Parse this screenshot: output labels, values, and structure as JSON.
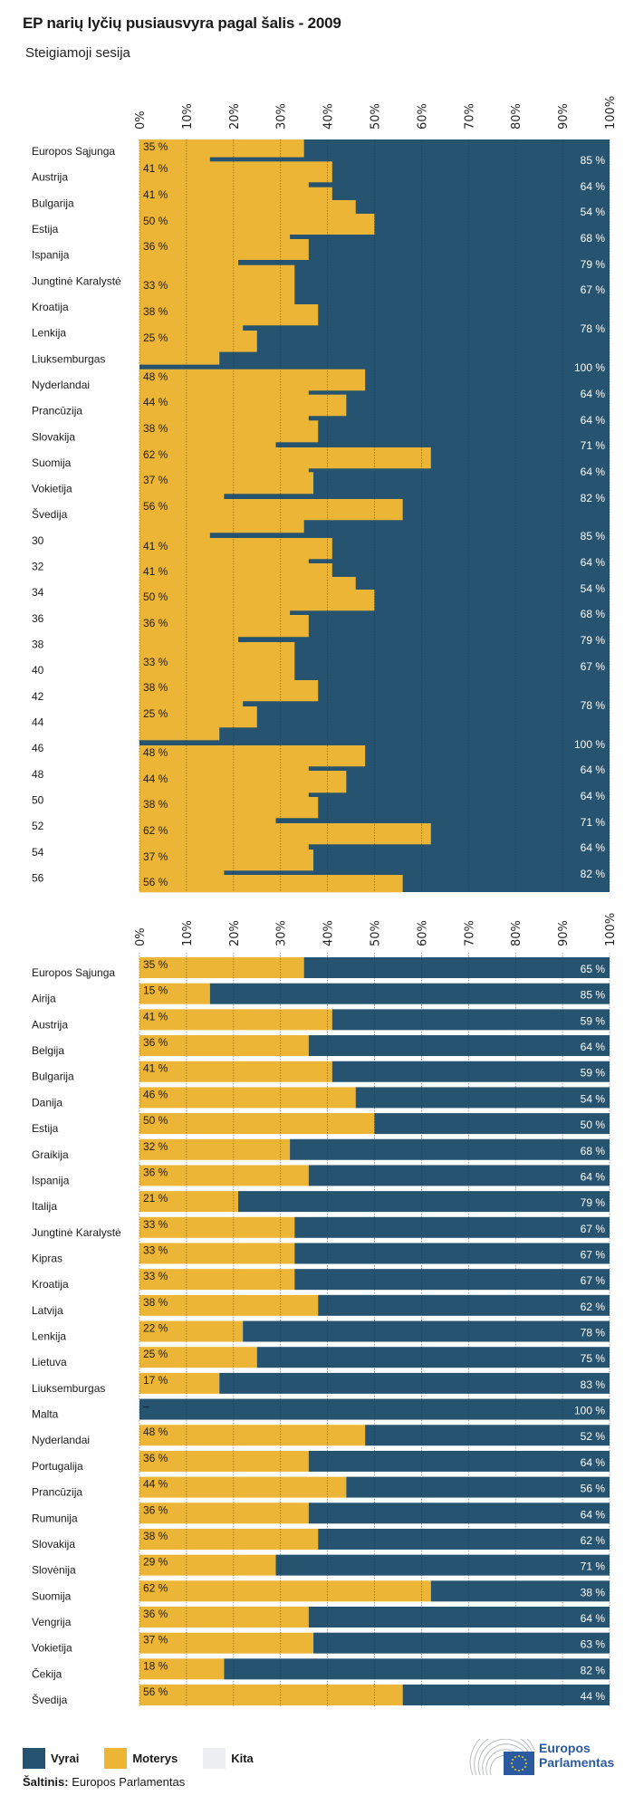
{
  "title": "EP narių lyčių pusiausvyra pagal šalis - 2009",
  "subtitle": "Steigiamoji sesija",
  "colors": {
    "men": "#26536f",
    "women": "#ecb535",
    "other": "#eceef1"
  },
  "chart_data": [
    {
      "type": "bar",
      "stacked": true,
      "orientation": "horizontal",
      "panel": "top",
      "xlim": [
        0,
        100
      ],
      "x_ticks": [
        "0%",
        "10%",
        "20%",
        "30%",
        "40%",
        "50%",
        "60%",
        "70%",
        "80%",
        "90%",
        "100%"
      ],
      "grid": true,
      "categories": [
        "Europos Sąjunga",
        "Austrija",
        "Bulgarija",
        "Estija",
        "Ispanija",
        "Jungtinė Karalystė",
        "Kroatija",
        "Lenkija",
        "Liuksemburgas",
        "Nyderlandai",
        "Prancūzija",
        "Slovakija",
        "Suomija",
        "Vokietija",
        "Švedija",
        "30",
        "32",
        "34",
        "36",
        "38",
        "40",
        "42",
        "44",
        "46",
        "48",
        "50",
        "52",
        "54",
        "56"
      ],
      "women_labels": [
        "35 %",
        "41 %",
        "41 %",
        "50 %",
        "36 %",
        "33 %",
        "38 %",
        "25 %",
        "48 %",
        "44 %",
        "38 %",
        "62 %",
        "37 %",
        "56 %",
        "41 %",
        "41 %",
        "50 %",
        "36 %",
        "33 %",
        "38 %",
        "25 %",
        "48 %",
        "44 %",
        "38 %",
        "62 %",
        "37 %",
        "56 %"
      ],
      "men_labels": [
        "85 %",
        "64 %",
        "54 %",
        "68 %",
        "79 %",
        "67 %",
        "78 %",
        "100 %",
        "64 %",
        "64 %",
        "71 %",
        "64 %",
        "82 %",
        "85 %",
        "64 %",
        "54 %",
        "68 %",
        "79 %",
        "67 %",
        "78 %",
        "100 %",
        "64 %",
        "64 %",
        "71 %",
        "64 %",
        "82 %"
      ],
      "segments": [
        {
          "series": "Moterys",
          "value": 35
        },
        {
          "series": "Vyrai",
          "value": 85
        },
        {
          "series": "Moterys",
          "value": 41
        },
        {
          "series": "Vyrai",
          "value": 64
        },
        {
          "series": "Moterys",
          "value": 41
        },
        {
          "series": "Moterys",
          "value": 46
        },
        {
          "series": "Moterys",
          "value": 50
        },
        {
          "series": "Vyrai",
          "value": 68
        },
        {
          "series": "Moterys",
          "value": 36
        },
        {
          "series": "Vyrai",
          "value": 79
        },
        {
          "series": "Moterys",
          "value": 33
        },
        {
          "series": "Moterys",
          "value": 38
        },
        {
          "series": "Vyrai",
          "value": 78
        },
        {
          "series": "Moterys",
          "value": 25
        },
        {
          "series": "Moterys",
          "value": 17
        },
        {
          "series": "Vyrai",
          "value": 100
        },
        {
          "series": "Moterys",
          "value": 48
        },
        {
          "series": "Vyrai",
          "value": 64
        },
        {
          "series": "Moterys",
          "value": 44
        },
        {
          "series": "Vyrai",
          "value": 64
        },
        {
          "series": "Moterys",
          "value": 38
        },
        {
          "series": "Vyrai",
          "value": 71
        },
        {
          "series": "Moterys",
          "value": 62
        },
        {
          "series": "Vyrai",
          "value": 64
        },
        {
          "series": "Moterys",
          "value": 37
        },
        {
          "series": "Vyrai",
          "value": 82
        },
        {
          "series": "Moterys",
          "value": 56
        },
        {
          "series": "Moterys",
          "value": 35
        },
        {
          "series": "Vyrai",
          "value": 85
        },
        {
          "series": "Moterys",
          "value": 41
        },
        {
          "series": "Vyrai",
          "value": 64
        },
        {
          "series": "Moterys",
          "value": 41
        },
        {
          "series": "Moterys",
          "value": 46
        },
        {
          "series": "Moterys",
          "value": 50
        },
        {
          "series": "Vyrai",
          "value": 68
        },
        {
          "series": "Moterys",
          "value": 36
        },
        {
          "series": "Vyrai",
          "value": 79
        },
        {
          "series": "Moterys",
          "value": 33
        },
        {
          "series": "Moterys",
          "value": 38
        },
        {
          "series": "Vyrai",
          "value": 78
        },
        {
          "series": "Moterys",
          "value": 25
        },
        {
          "series": "Moterys",
          "value": 17
        },
        {
          "series": "Vyrai",
          "value": 100
        },
        {
          "series": "Moterys",
          "value": 48
        },
        {
          "series": "Vyrai",
          "value": 64
        },
        {
          "series": "Moterys",
          "value": 44
        },
        {
          "series": "Vyrai",
          "value": 64
        },
        {
          "series": "Moterys",
          "value": 38
        },
        {
          "series": "Vyrai",
          "value": 71
        },
        {
          "series": "Moterys",
          "value": 62
        },
        {
          "series": "Vyrai",
          "value": 64
        },
        {
          "series": "Moterys",
          "value": 37
        },
        {
          "series": "Vyrai",
          "value": 82
        },
        {
          "series": "Moterys",
          "value": 56
        }
      ]
    },
    {
      "type": "bar",
      "stacked": true,
      "orientation": "horizontal",
      "panel": "bottom",
      "xlim": [
        0,
        100
      ],
      "x_ticks": [
        "0%",
        "10%",
        "20%",
        "30%",
        "40%",
        "50%",
        "60%",
        "70%",
        "80%",
        "90%",
        "100%"
      ],
      "grid": true,
      "categories": [
        "Europos Sąjunga",
        "Airija",
        "Austrija",
        "Belgija",
        "Bulgarija",
        "Danija",
        "Estija",
        "Graikija",
        "Ispanija",
        "Italija",
        "Jungtinė Karalystė",
        "Kipras",
        "Kroatija",
        "Latvija",
        "Lenkija",
        "Lietuva",
        "Liuksemburgas",
        "Malta",
        "Nyderlandai",
        "Portugalija",
        "Prancūzija",
        "Rumunija",
        "Slovakija",
        "Slovėnija",
        "Suomija",
        "Vengrija",
        "Vokietija",
        "Čekija",
        "Švedija"
      ],
      "series": [
        {
          "name": "Moterys",
          "values": [
            35,
            15,
            41,
            36,
            41,
            46,
            50,
            32,
            36,
            21,
            33,
            33,
            33,
            38,
            22,
            25,
            17,
            0,
            48,
            36,
            44,
            36,
            38,
            29,
            62,
            36,
            37,
            18,
            56
          ],
          "labels": [
            "35 %",
            "15 %",
            "41 %",
            "36 %",
            "41 %",
            "46 %",
            "50 %",
            "32 %",
            "36 %",
            "21 %",
            "33 %",
            "33 %",
            "33 %",
            "38 %",
            "22 %",
            "25 %",
            "17 %",
            "–",
            "48 %",
            "36 %",
            "44 %",
            "36 %",
            "38 %",
            "29 %",
            "62 %",
            "36 %",
            "37 %",
            "18 %",
            "56 %"
          ]
        },
        {
          "name": "Vyrai",
          "values": [
            65,
            85,
            59,
            64,
            59,
            54,
            50,
            68,
            64,
            79,
            67,
            67,
            67,
            62,
            78,
            75,
            83,
            100,
            52,
            64,
            56,
            64,
            62,
            71,
            38,
            64,
            63,
            82,
            44
          ],
          "labels": [
            "65 %",
            "85 %",
            "59 %",
            "64 %",
            "59 %",
            "54 %",
            "50 %",
            "68 %",
            "64 %",
            "79 %",
            "67 %",
            "67 %",
            "67 %",
            "62 %",
            "78 %",
            "75 %",
            "83 %",
            "100 %",
            "52 %",
            "64 %",
            "56 %",
            "64 %",
            "62 %",
            "71 %",
            "38 %",
            "64 %",
            "63 %",
            "82 %",
            "44 %"
          ]
        }
      ]
    }
  ],
  "legend": [
    {
      "label": "Vyrai",
      "color": "#26536f"
    },
    {
      "label": "Moterys",
      "color": "#ecb535"
    },
    {
      "label": "Kita",
      "color": "#eceef1"
    }
  ],
  "source": {
    "label": "Šaltinis:",
    "value": "Europos Parlamentas"
  },
  "logo": {
    "line1": "Europos",
    "line2": "Parlamentas"
  }
}
